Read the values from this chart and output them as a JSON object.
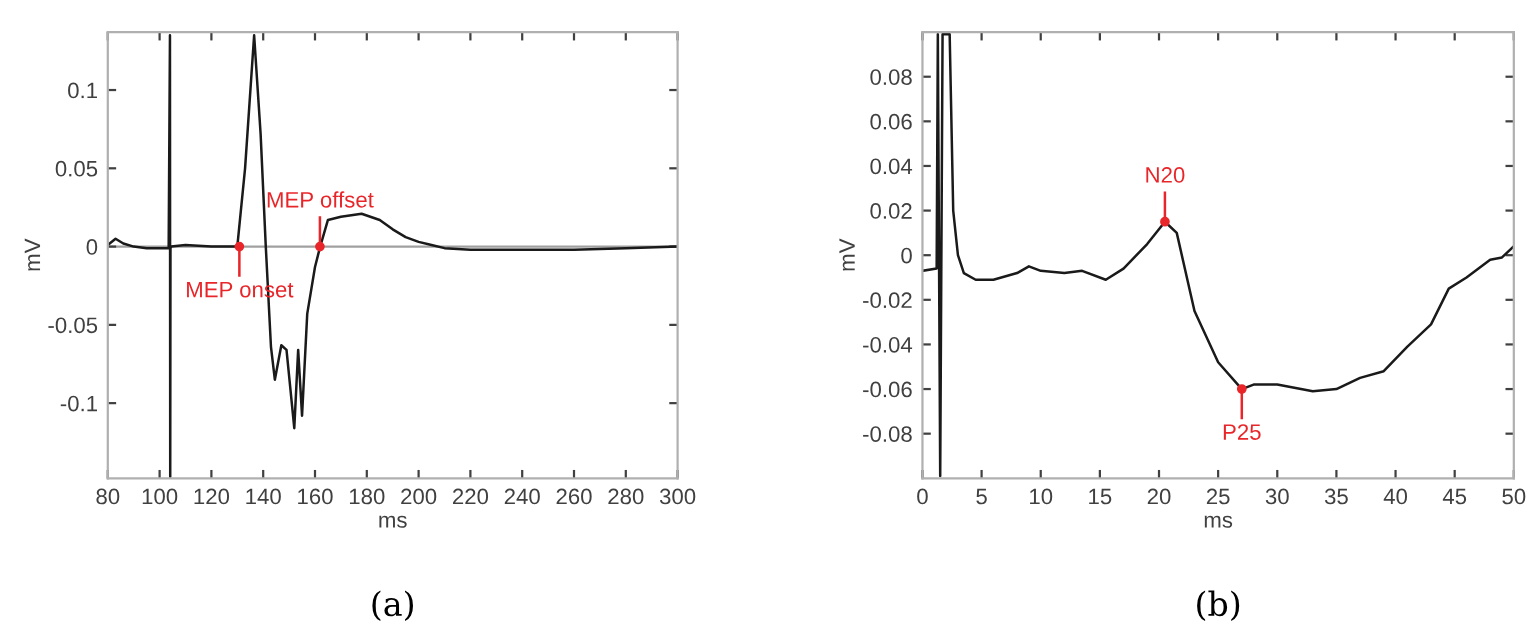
{
  "chart_data": [
    {
      "type": "line",
      "xlabel": "ms",
      "ylabel": "mV",
      "xlim": [
        80,
        300
      ],
      "ylim": [
        -0.148,
        0.137
      ],
      "xticks": [
        80,
        100,
        120,
        140,
        160,
        180,
        200,
        220,
        240,
        260,
        280,
        300
      ],
      "yticks": [
        {
          "value": -0.1,
          "label": "-0.1"
        },
        {
          "value": -0.05,
          "label": "-0.05"
        },
        0,
        0.05,
        0.1
      ],
      "grid": false,
      "series": [
        {
          "color": "#1a1a1a",
          "x": [
            80,
            83,
            86,
            90,
            95,
            100,
            103.5,
            104,
            104.1,
            104.2,
            104.5,
            110,
            120,
            130,
            133,
            136.5,
            139,
            141,
            143,
            144.5,
            147,
            149,
            152,
            153.5,
            155,
            157,
            160,
            162,
            165,
            170,
            178,
            185,
            190,
            195,
            200,
            205,
            210,
            220,
            240,
            260,
            280,
            300
          ],
          "values": [
            0.001,
            0.005,
            0.002,
            0.0,
            -0.001,
            -0.001,
            -0.001,
            0.135,
            -0.147,
            -0.001,
            0.0,
            0.001,
            0.0,
            0.0,
            0.05,
            0.135,
            0.072,
            0.0,
            -0.064,
            -0.085,
            -0.063,
            -0.066,
            -0.116,
            -0.066,
            -0.108,
            -0.043,
            -0.013,
            0.0,
            0.017,
            0.019,
            0.021,
            0.017,
            0.011,
            0.006,
            0.003,
            0.001,
            -0.001,
            -0.002,
            -0.002,
            -0.002,
            -0.001,
            0.0
          ]
        }
      ],
      "ref_lines": [
        {
          "axis": "y",
          "value": 0,
          "color": "#a0a0a0"
        }
      ],
      "annotations": [
        {
          "text": "MEP onset",
          "x": 130.8,
          "y": 0
        },
        {
          "text": "MEP offset",
          "x": 161.9,
          "y": 0
        },
        "(a)"
      ]
    },
    {
      "type": "line",
      "xlabel": "ms",
      "ylabel": "mV",
      "xlim": [
        0,
        50
      ],
      "ylim": [
        -0.1,
        0.1
      ],
      "xticks": [
        0,
        5,
        10,
        15,
        20,
        25,
        30,
        35,
        40,
        45,
        50
      ],
      "yticks": [
        {
          "value": -0.08,
          "label": "-0.08"
        },
        {
          "value": -0.06,
          "label": "-0.06"
        },
        {
          "value": -0.04,
          "label": "-0.04"
        },
        {
          "value": -0.02,
          "label": "-0.02"
        },
        0,
        0.02,
        0.04,
        0.06,
        0.08
      ],
      "grid": false,
      "series": [
        {
          "color": "#1a1a1a",
          "x": [
            0,
            1.2,
            1.3,
            1.5,
            1.7,
            2.3,
            2.6,
            3,
            3.5,
            4.5,
            6,
            8,
            9,
            10,
            12,
            13.5,
            15.5,
            17,
            19,
            20.5,
            21.5,
            23,
            25,
            27,
            28,
            30,
            33,
            35,
            37,
            39,
            41,
            43,
            44.5,
            46,
            48,
            49,
            50
          ],
          "values": [
            -0.007,
            -0.006,
            0.099,
            -0.099,
            0.099,
            0.099,
            0.02,
            0.0,
            -0.008,
            -0.011,
            -0.011,
            -0.008,
            -0.005,
            -0.007,
            -0.008,
            -0.007,
            -0.011,
            -0.006,
            0.005,
            0.015,
            0.01,
            -0.025,
            -0.048,
            -0.06,
            -0.058,
            -0.058,
            -0.061,
            -0.06,
            -0.055,
            -0.052,
            -0.041,
            -0.031,
            -0.015,
            -0.01,
            -0.002,
            -0.001,
            0.004
          ]
        }
      ],
      "annotations": [
        {
          "text": "N20",
          "x": 20.5,
          "y": 0.015
        },
        {
          "text": "P25",
          "x": 27,
          "y": -0.06
        },
        "(b)"
      ]
    }
  ]
}
